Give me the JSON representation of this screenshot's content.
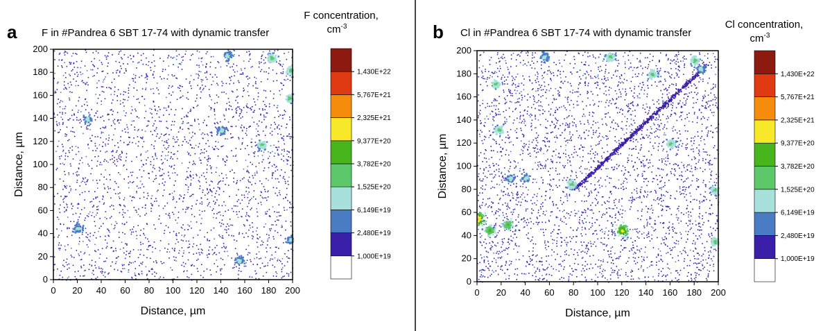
{
  "chart_data": [
    {
      "type": "heatmap",
      "panel_letter": "a",
      "title": "F in #Pandrea 6 SBT 17-74 with dynamic transfer",
      "xlabel": "Distance, µm",
      "ylabel": "Distance, µm",
      "xlim": [
        0,
        200
      ],
      "ylim": [
        0,
        200
      ],
      "x_ticks": [
        "0",
        "20",
        "40",
        "60",
        "80",
        "100",
        "120",
        "140",
        "160",
        "180",
        "200"
      ],
      "y_ticks": [
        "0",
        "20",
        "40",
        "60",
        "80",
        "100",
        "120",
        "140",
        "160",
        "180",
        "200"
      ],
      "colorbar": {
        "title_line1": "F concentration,",
        "title_line2": "cm",
        "title_exp": "-3",
        "levels": [
          "1,000E+19",
          "2,480E+19",
          "6,149E+19",
          "1,525E+20",
          "3,782E+20",
          "9,377E+20",
          "2,325E+21",
          "5,767E+21",
          "1,430E+22"
        ],
        "colors": [
          "#ffffff",
          "#3a1fa8",
          "#4a7cc4",
          "#a8e0dc",
          "#5cc86a",
          "#48b51c",
          "#f7e82a",
          "#f58c0c",
          "#e03a12",
          "#8c1a10"
        ]
      },
      "hotspots": [
        {
          "x": 182,
          "y": 193,
          "level": 4
        },
        {
          "x": 198,
          "y": 182,
          "level": 4
        },
        {
          "x": 197,
          "y": 158,
          "level": 4
        },
        {
          "x": 174,
          "y": 118,
          "level": 4
        },
        {
          "x": 140,
          "y": 130,
          "level": 3
        },
        {
          "x": 28,
          "y": 140,
          "level": 3
        },
        {
          "x": 20,
          "y": 45,
          "level": 3
        },
        {
          "x": 155,
          "y": 17,
          "level": 3
        },
        {
          "x": 198,
          "y": 35,
          "level": 3
        },
        {
          "x": 145,
          "y": 195,
          "level": 3
        }
      ]
    },
    {
      "type": "heatmap",
      "panel_letter": "b",
      "title": "Cl in #Pandrea 6 SBT 17-74 with dynamic transfer",
      "xlabel": "Distance, µm",
      "ylabel": "Distance, µm",
      "xlim": [
        0,
        200
      ],
      "ylim": [
        0,
        200
      ],
      "x_ticks": [
        "0",
        "20",
        "40",
        "60",
        "80",
        "100",
        "120",
        "140",
        "160",
        "180",
        "200"
      ],
      "y_ticks": [
        "0",
        "20",
        "40",
        "60",
        "80",
        "100",
        "120",
        "140",
        "160",
        "180",
        "200"
      ],
      "colorbar": {
        "title_line1": "Cl concentration,",
        "title_line2": "cm",
        "title_exp": "-3",
        "levels": [
          "1,000E+19",
          "2,480E+19",
          "6,149E+19",
          "1,525E+20",
          "3,782E+20",
          "9,377E+20",
          "2,325E+21",
          "5,767E+21",
          "1,430E+22"
        ],
        "colors": [
          "#ffffff",
          "#3a1fa8",
          "#4a7cc4",
          "#a8e0dc",
          "#5cc86a",
          "#48b51c",
          "#f7e82a",
          "#f58c0c",
          "#e03a12",
          "#8c1a10"
        ]
      },
      "hotspots": [
        {
          "x": 15,
          "y": 172,
          "level": 4
        },
        {
          "x": 18,
          "y": 132,
          "level": 4
        },
        {
          "x": 27,
          "y": 90,
          "level": 3
        },
        {
          "x": 40,
          "y": 90,
          "level": 3
        },
        {
          "x": 78,
          "y": 85,
          "level": 4
        },
        {
          "x": 120,
          "y": 45,
          "level": 6
        },
        {
          "x": 25,
          "y": 50,
          "level": 5
        },
        {
          "x": 10,
          "y": 45,
          "level": 5
        },
        {
          "x": 0,
          "y": 55,
          "level": 7
        },
        {
          "x": 160,
          "y": 120,
          "level": 4
        },
        {
          "x": 145,
          "y": 180,
          "level": 4
        },
        {
          "x": 197,
          "y": 80,
          "level": 4
        },
        {
          "x": 197,
          "y": 35,
          "level": 4
        },
        {
          "x": 110,
          "y": 195,
          "level": 4
        },
        {
          "x": 180,
          "y": 192,
          "level": 4
        },
        {
          "x": 55,
          "y": 195,
          "level": 3
        },
        {
          "x": 185,
          "y": 185,
          "level": 3
        }
      ]
    }
  ]
}
